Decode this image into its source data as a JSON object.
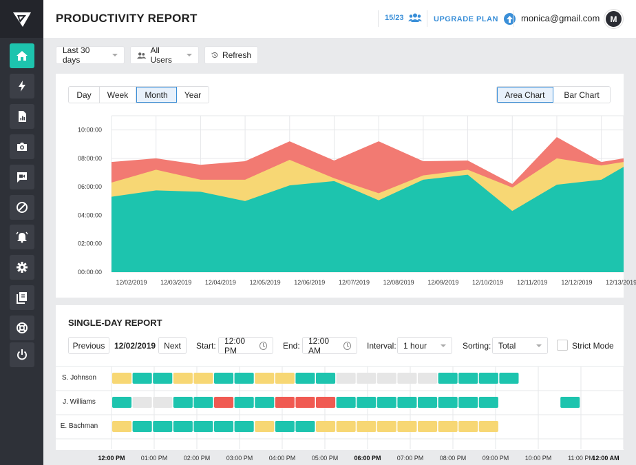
{
  "header": {
    "title": "PRODUCTIVITY REPORT",
    "seats": "15/23",
    "upgrade_label": "UPGRADE PLAN",
    "email": "monica@gmail.com",
    "avatar_initial": "M"
  },
  "sidebar": {
    "items": [
      {
        "icon": "home-icon",
        "active": true
      },
      {
        "icon": "lightning-icon"
      },
      {
        "icon": "report-file-icon"
      },
      {
        "icon": "camera-icon"
      },
      {
        "icon": "video-chat-icon"
      },
      {
        "icon": "block-icon"
      },
      {
        "icon": "alarm-icon"
      },
      {
        "icon": "gear-icon"
      },
      {
        "icon": "documents-icon"
      },
      {
        "icon": "lifebuoy-icon"
      },
      {
        "icon": "power-icon"
      }
    ]
  },
  "filters": {
    "range": "Last 30 days",
    "users": "All Users",
    "refresh": "Refresh"
  },
  "chart_controls": {
    "periods": [
      "Day",
      "Week",
      "Month",
      "Year"
    ],
    "selected_period": "Month",
    "types": [
      "Area Chart",
      "Bar Chart"
    ],
    "selected_type": "Area Chart"
  },
  "chart_data": {
    "type": "area",
    "stacked": true,
    "x": [
      "12/02/2019",
      "12/03/2019",
      "12/04/2019",
      "12/05/2019",
      "12/06/2019",
      "12/07/2019",
      "12/08/2019",
      "12/09/2019",
      "12/10/2019",
      "12/11/2019",
      "12/12/2019",
      "12/13/2019"
    ],
    "x_points": [
      "12/02/2019",
      "",
      "12/03/2019",
      "",
      "12/04/2019",
      "",
      "12/05/2019",
      "",
      "12/06/2019",
      "",
      "12/07/2019",
      "",
      "12/08/2019",
      "",
      "12/09/2019",
      "",
      "12/10/2019",
      "",
      "12/11/2019",
      "",
      "12/12/2019",
      "",
      "12/13/2019",
      ""
    ],
    "y_ticks": [
      "00:00:00",
      "02:00:00",
      "04:00:00",
      "06:00:00",
      "08:00:00",
      "10:00:00"
    ],
    "ylim_hours": [
      0,
      11
    ],
    "series": [
      {
        "color": "#1dc4ae",
        "cumulative_hours": [
          5.3,
          5.75,
          5.65,
          5.0,
          6.1,
          6.4,
          5.05,
          6.5,
          6.85,
          4.3,
          6.15,
          6.5,
          7.4
        ]
      },
      {
        "color": "#f7d774",
        "cumulative_hours": [
          6.3,
          7.2,
          6.5,
          6.5,
          7.9,
          6.6,
          5.55,
          6.8,
          7.2,
          5.95,
          8.0,
          7.5,
          7.75
        ]
      },
      {
        "color": "#f27a72",
        "cumulative_hours": [
          7.75,
          8.0,
          7.55,
          7.8,
          9.2,
          7.85,
          9.2,
          7.8,
          7.85,
          6.2,
          9.5,
          7.75,
          8.0
        ]
      }
    ]
  },
  "single_day": {
    "title": "SINGLE-DAY REPORT",
    "prev": "Previous",
    "date": "12/02/2019",
    "next": "Next",
    "start_label": "Start:",
    "start_value": "12:00 PM",
    "end_label": "End:",
    "end_value": "12:00 AM",
    "interval_label": "Interval:",
    "interval_value": "1 hour",
    "sorting_label": "Sorting:",
    "sorting_value": "Total",
    "strict_label": "Strict Mode",
    "time_ticks": [
      "12:00 PM",
      "01:00 PM",
      "02:00 PM",
      "03:00 PM",
      "04:00 PM",
      "05:00 PM",
      "06:00 PM",
      "07:00 PM",
      "08:00 PM",
      "09:00 PM",
      "10:00 PM",
      "11:00 PM",
      "12:00 AM"
    ],
    "bold_ticks": [
      0,
      6,
      12
    ],
    "colors": {
      "y": "#f7d774",
      "g": "#1dc4ae",
      "r": "#f05a52",
      "n": "#e6e6e6"
    },
    "rows": [
      {
        "name": "S. Johnson",
        "slots": [
          "y",
          "g",
          "g",
          "y",
          "y",
          "g",
          "g",
          "y",
          "y",
          "g",
          "g",
          "n",
          "n",
          "n",
          "n",
          "n",
          "g",
          "g",
          "g",
          "g",
          "",
          "",
          "",
          "",
          ""
        ]
      },
      {
        "name": "J. Williams",
        "slots": [
          "g",
          "n",
          "n",
          "g",
          "g",
          "r",
          "g",
          "g",
          "r",
          "r",
          "r",
          "g",
          "g",
          "g",
          "g",
          "g",
          "g",
          "g",
          "g",
          "",
          "",
          "",
          "g",
          "",
          ""
        ]
      },
      {
        "name": "E. Bachman",
        "slots": [
          "y",
          "g",
          "g",
          "g",
          "g",
          "g",
          "g",
          "y",
          "g",
          "g",
          "y",
          "y",
          "y",
          "y",
          "y",
          "y",
          "y",
          "y",
          "y",
          "",
          "",
          "",
          "",
          "",
          ""
        ]
      }
    ]
  }
}
